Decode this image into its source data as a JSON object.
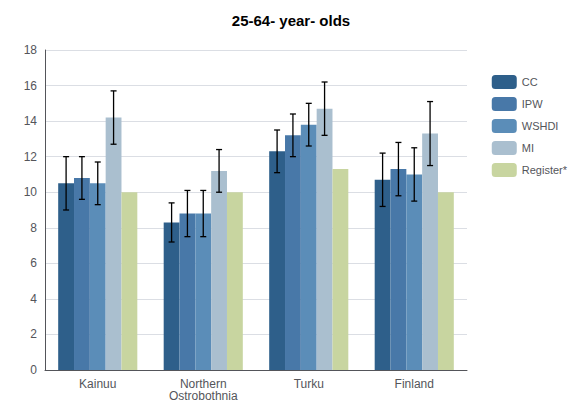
{
  "chart_data": {
    "type": "bar",
    "title": "25-64- year- olds",
    "categories": [
      "Kainuu",
      "Northern\nOstrobothnia",
      "Turku",
      "Finland"
    ],
    "series": [
      {
        "name": "CC",
        "color": "#2E5F8A",
        "values": [
          10.5,
          8.3,
          12.3,
          10.7
        ],
        "errors": [
          1.5,
          1.1,
          1.2,
          1.5
        ]
      },
      {
        "name": "IPW",
        "color": "#4878A8",
        "values": [
          10.8,
          8.8,
          13.2,
          11.3
        ],
        "errors": [
          1.2,
          1.3,
          1.2,
          1.5
        ]
      },
      {
        "name": "WSHDI",
        "color": "#5B8DB8",
        "values": [
          10.5,
          8.8,
          13.8,
          11.0
        ],
        "errors": [
          1.2,
          1.3,
          1.2,
          1.5
        ]
      },
      {
        "name": "MI",
        "color": "#AABFCF",
        "values": [
          14.2,
          11.2,
          14.7,
          13.3
        ],
        "errors": [
          1.5,
          1.2,
          1.5,
          1.8
        ]
      },
      {
        "name": "Register*",
        "color": "#C8D5A0",
        "values": [
          10.0,
          10.0,
          11.3,
          10.0
        ]
      }
    ],
    "ylim": [
      0,
      18
    ],
    "yticks": [
      0,
      2,
      4,
      6,
      8,
      10,
      12,
      14,
      16,
      18
    ],
    "grid": true,
    "legend": "right"
  }
}
